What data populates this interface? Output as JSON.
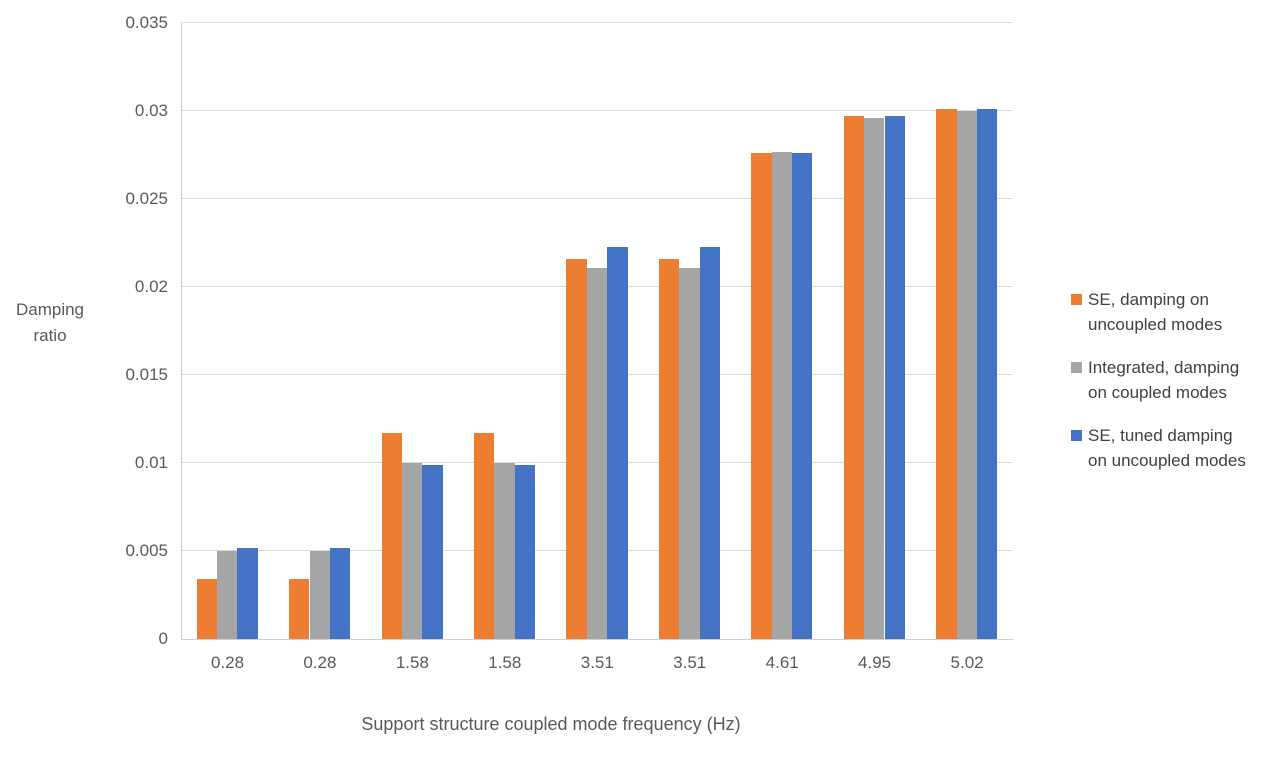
{
  "chart_data": {
    "type": "bar",
    "title": "",
    "categories": [
      "0.28",
      "0.28",
      "1.58",
      "1.58",
      "3.51",
      "3.51",
      "4.61",
      "4.95",
      "5.02"
    ],
    "series": [
      {
        "name": "SE, damping on uncoupled modes",
        "color": "#ED7D31",
        "values": [
          0.0034,
          0.0034,
          0.0117,
          0.0117,
          0.0216,
          0.0216,
          0.0276,
          0.0297,
          0.0301
        ]
      },
      {
        "name": "Integrated, damping on coupled modes",
        "color": "#A5A5A5",
        "values": [
          0.005,
          0.005,
          0.01,
          0.01,
          0.0211,
          0.0211,
          0.0277,
          0.0296,
          0.03
        ]
      },
      {
        "name": "SE, tuned damping on uncoupled modes",
        "color": "#4472C4",
        "values": [
          0.0052,
          0.0052,
          0.0099,
          0.0099,
          0.0223,
          0.0223,
          0.0276,
          0.0297,
          0.0301
        ]
      }
    ],
    "xlabel": "Support structure coupled mode frequency (Hz)",
    "ylabel": "Damping ratio",
    "ylim": [
      0,
      0.035
    ],
    "ytick_step": 0.005,
    "yticks": [
      "0",
      "0.005",
      "0.01",
      "0.015",
      "0.02",
      "0.025",
      "0.03",
      "0.035"
    ],
    "grid": true,
    "legend_position": "right"
  },
  "styles": {
    "grid_color": "#D9D9D9",
    "axis_line_color": "#D0CECE",
    "tick_text_color": "#595959",
    "axis_title_color": "#595959",
    "legend_text_color": "#404040",
    "background_color": "#FFFFFF"
  }
}
